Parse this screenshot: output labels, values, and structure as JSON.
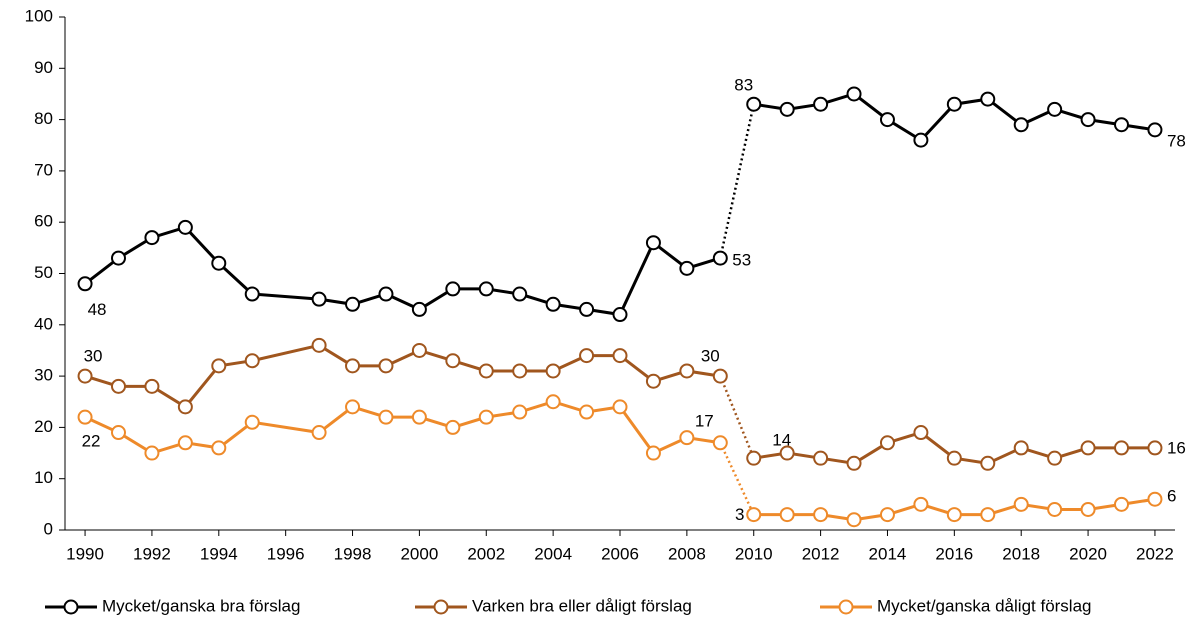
{
  "chart_data": {
    "type": "line",
    "x": [
      1990,
      1991,
      1992,
      1993,
      1994,
      1995,
      1997,
      1998,
      1999,
      2000,
      2001,
      2002,
      2003,
      2004,
      2005,
      2006,
      2007,
      2008,
      2009,
      2010,
      2011,
      2012,
      2013,
      2014,
      2015,
      2016,
      2017,
      2018,
      2019,
      2020,
      2021,
      2022
    ],
    "series": [
      {
        "name": "Mycket/ganska bra förslag",
        "color": "#000000",
        "values": [
          48,
          53,
          57,
          59,
          52,
          46,
          45,
          44,
          46,
          43,
          47,
          47,
          46,
          44,
          43,
          42,
          56,
          51,
          53,
          83,
          82,
          83,
          85,
          80,
          76,
          83,
          84,
          79,
          82,
          80,
          79,
          78
        ]
      },
      {
        "name": "Varken bra eller dåligt förslag",
        "color": "#a0561e",
        "values": [
          30,
          28,
          28,
          24,
          32,
          33,
          36,
          32,
          32,
          35,
          33,
          31,
          31,
          31,
          34,
          34,
          29,
          31,
          30,
          14,
          15,
          14,
          13,
          17,
          19,
          14,
          13,
          16,
          14,
          16,
          16,
          16
        ]
      },
      {
        "name": "Mycket/ganska dåligt förslag",
        "color": "#ee8a2a",
        "values": [
          22,
          19,
          15,
          17,
          16,
          21,
          19,
          24,
          22,
          22,
          20,
          22,
          23,
          25,
          23,
          24,
          15,
          18,
          17,
          3,
          3,
          3,
          2,
          3,
          5,
          3,
          3,
          5,
          4,
          4,
          5,
          6
        ]
      }
    ],
    "xlim": [
      1989.4,
      2022.6
    ],
    "xticks": [
      1990,
      1992,
      1994,
      1996,
      1998,
      2000,
      2002,
      2004,
      2006,
      2008,
      2010,
      2012,
      2014,
      2016,
      2018,
      2020,
      2022
    ],
    "ylim": [
      0,
      100
    ],
    "yticks": [
      0,
      10,
      20,
      30,
      40,
      50,
      60,
      70,
      80,
      90,
      100
    ],
    "grid": false,
    "dotted_from": 2009,
    "labeled_x": [
      1990,
      2009,
      2010,
      2022
    ],
    "legend": "bottom"
  }
}
